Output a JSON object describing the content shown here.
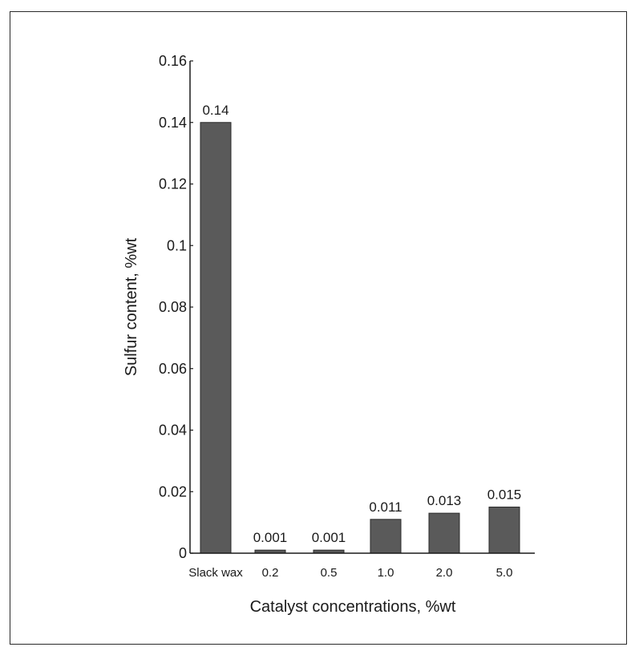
{
  "chart_data": {
    "type": "bar",
    "categories": [
      "Slack wax",
      "0.2",
      "0.5",
      "1.0",
      "2.0",
      "5.0"
    ],
    "values": [
      0.14,
      0.001,
      0.001,
      0.011,
      0.013,
      0.015
    ],
    "data_labels": [
      "0.14",
      "0.001",
      "0.001",
      "0.011",
      "0.013",
      "0.015"
    ],
    "title": "",
    "xlabel": "Catalyst concentrations, %wt",
    "ylabel": "Sulfur content, %wt",
    "ylim": [
      0,
      0.16
    ],
    "yticks": [
      0,
      0.02,
      0.04,
      0.06,
      0.08,
      0.1,
      0.12,
      0.14,
      0.16
    ],
    "ytick_labels": [
      "0",
      "0.02",
      "0.04",
      "0.06",
      "0.08",
      "0.1",
      "0.12",
      "0.14",
      "0.16"
    ],
    "grid": false,
    "bar_color": "#5a5a5a"
  }
}
